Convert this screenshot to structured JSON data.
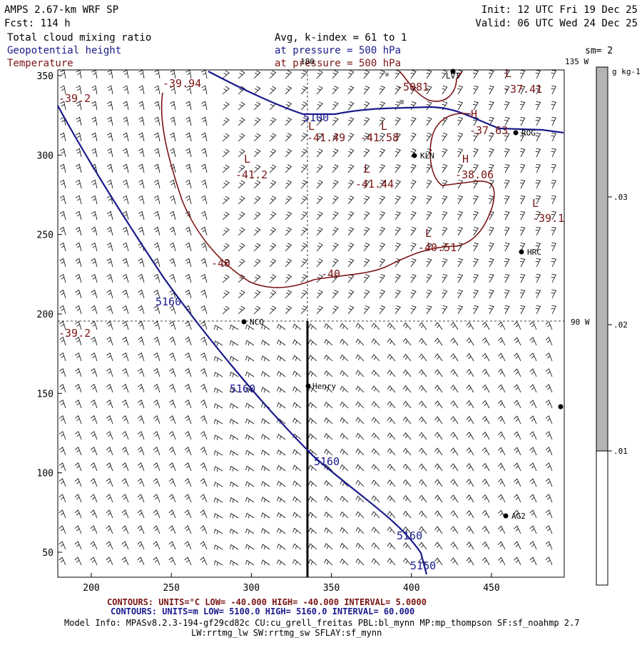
{
  "header": {
    "model": "AMPS 2.67-km WRF SP",
    "fcst": "Fcst:  114 h",
    "init": "Init: 12 UTC Fri 19 Dec 25",
    "valid": "Valid: 06 UTC Wed 24 Dec 25",
    "field1": "Total cloud mixing ratio",
    "field2": "Geopotential height",
    "field3": "Temperature",
    "avg": "Avg, k-index =  61 to   1",
    "pressure1": "at pressure =  500 hPa",
    "pressure2": "at pressure =  500 hPa",
    "sm": "sm= 2"
  },
  "colors": {
    "height": "#1a1a8c",
    "temperature": "#7a1414",
    "field1": "#000000",
    "field2": "#1a1a8c",
    "field3": "#7a1414"
  },
  "axes": {
    "x_ticks": [
      "200",
      "250",
      "300",
      "350",
      "400",
      "450"
    ],
    "y_ticks": [
      "350",
      "300",
      "250",
      "200",
      "150",
      "100",
      "50"
    ]
  },
  "meridians": {
    "m180": "180",
    "m135": "135 W",
    "m90": "90 W"
  },
  "colorbar": {
    "unit": "g kg-1",
    "ticks": [
      ".03",
      ".02",
      ".01"
    ]
  },
  "stations": [
    {
      "name": "LVT"
    },
    {
      "name": "ROG"
    },
    {
      "name": "KLN"
    },
    {
      "name": "HRC"
    },
    {
      "name": "NCO"
    },
    {
      "name": "Henry"
    },
    {
      "name": "AG2"
    },
    {
      "name": ""
    }
  ],
  "height_labels": [
    "5100",
    "5160",
    "5160",
    "5160",
    "5160",
    "5160"
  ],
  "temp_labels": [
    "-39.94",
    "-37.41",
    "-41.49",
    "-41.58",
    "-37.63",
    "-41.2",
    "-41.44",
    "-38.06",
    "-39.1",
    "-40.51",
    "-40",
    "-40",
    "-39.2",
    "-39.2",
    "-5081"
  ],
  "extrema": [
    "L",
    "L",
    "L",
    "L",
    "H",
    "L",
    "L",
    "L",
    "H"
  ],
  "footer": {
    "contours1": "CONTOURS:  UNITS=°C  LOW= -40.000       HIGH= -40.000      INTERVAL=   5.0000",
    "contours2": "CONTOURS:  UNITS=m   LOW=  5100.0       HIGH=  5160.0      INTERVAL=   60.000",
    "model_info": "Model Info: MPASv8.2.3-194-gf29cd82c CU:cu_grell_freitas PBL:bl_mynn MP:mp_thompson SF:sf_noahmp 2.7",
    "model_info2": "LW:rrtmg_lw SW:rrtmg_sw SFLAY:sf_mynn"
  }
}
